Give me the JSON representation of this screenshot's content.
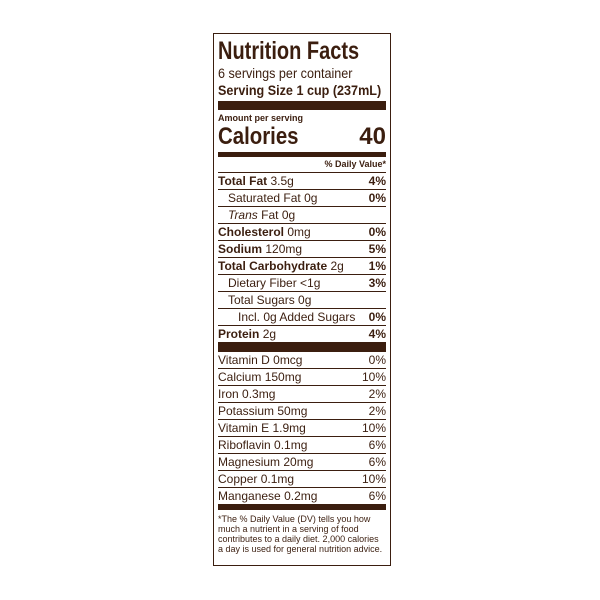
{
  "title": "Nutrition Facts",
  "servings": "6 servings per container",
  "serving_size": {
    "label": "Serving Size",
    "amount": "1 cup (237mL)"
  },
  "amount_per_serving": "Amount per serving",
  "calories": {
    "label": "Calories",
    "value": 40
  },
  "dv_header": "% Daily Value*",
  "nutrients": [
    {
      "name": "Total Fat",
      "amount": "3.5g",
      "dv": "4%"
    },
    {
      "name": "Saturated Fat",
      "amount": "0g",
      "dv": "0%"
    },
    {
      "name_italic": "Trans",
      "name": "Fat",
      "amount": "0g"
    },
    {
      "name": "Cholesterol",
      "amount": "0mg",
      "dv": "0%"
    },
    {
      "name": "Sodium",
      "amount": "120mg",
      "dv": "5%"
    },
    {
      "name": "Total Carbohydrate",
      "amount": "2g",
      "dv": "1%"
    },
    {
      "name": "Dietary Fiber",
      "amount": "<1g",
      "dv": "3%"
    },
    {
      "name": "Total Sugars",
      "amount": "0g"
    },
    {
      "name": "Incl. 0g Added Sugars",
      "dv": "0%"
    },
    {
      "name": "Protein",
      "amount": "2g",
      "dv": "4%"
    }
  ],
  "vitamins": [
    {
      "name": "Vitamin D",
      "amount": "0mcg",
      "dv": "0%"
    },
    {
      "name": "Calcium",
      "amount": "150mg",
      "dv": "10%"
    },
    {
      "name": "Iron",
      "amount": "0.3mg",
      "dv": "2%"
    },
    {
      "name": "Potassium",
      "amount": "50mg",
      "dv": "2%"
    },
    {
      "name": "Vitamin E",
      "amount": "1.9mg",
      "dv": "10%"
    },
    {
      "name": "Riboflavin",
      "amount": "0.1mg",
      "dv": "6%"
    },
    {
      "name": "Magnesium",
      "amount": "20mg",
      "dv": "6%"
    },
    {
      "name": "Copper",
      "amount": "0.1mg",
      "dv": "10%"
    },
    {
      "name": "Manganese",
      "amount": "0.2mg",
      "dv": "6%"
    }
  ],
  "footnote": "*The % Daily Value (DV) tells you how much a nutrient in a serving of food contributes to a daily diet. 2,000 calories a day is used for general nutrition advice."
}
